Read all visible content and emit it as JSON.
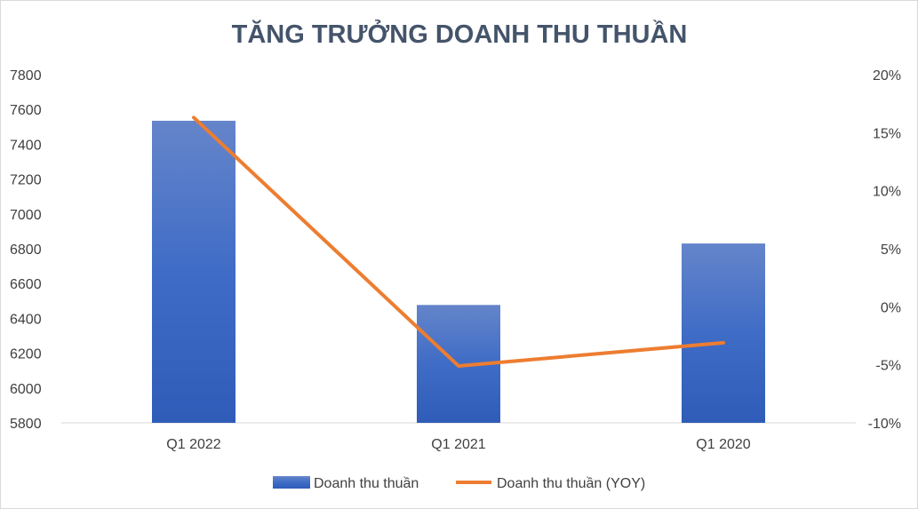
{
  "chart_data": {
    "type": "bar",
    "title": "TĂNG TRƯỞNG DOANH THU THUẦN",
    "categories": [
      "Q1 2022",
      "Q1 2021",
      "Q1 2020"
    ],
    "series": [
      {
        "name": "Doanh thu thuần",
        "type": "bar",
        "axis": "left",
        "values": [
          7535,
          6477,
          6830
        ],
        "color": "#4472c4"
      },
      {
        "name": "Doanh thu thuần (YOY)",
        "type": "line",
        "axis": "right",
        "values": [
          16.3,
          -5.1,
          -3.1
        ],
        "color": "#ed7d31"
      }
    ],
    "y_left": {
      "ylim": [
        5800,
        7800
      ],
      "ticks": [
        "5800",
        "6000",
        "6200",
        "6400",
        "6600",
        "6800",
        "7000",
        "7200",
        "7400",
        "7600",
        "7800"
      ]
    },
    "y_right": {
      "ylim": [
        -10,
        20
      ],
      "ticks": [
        "-10%",
        "-5%",
        "0%",
        "5%",
        "10%",
        "15%",
        "20%"
      ]
    },
    "grid": false,
    "legend_position": "bottom"
  }
}
